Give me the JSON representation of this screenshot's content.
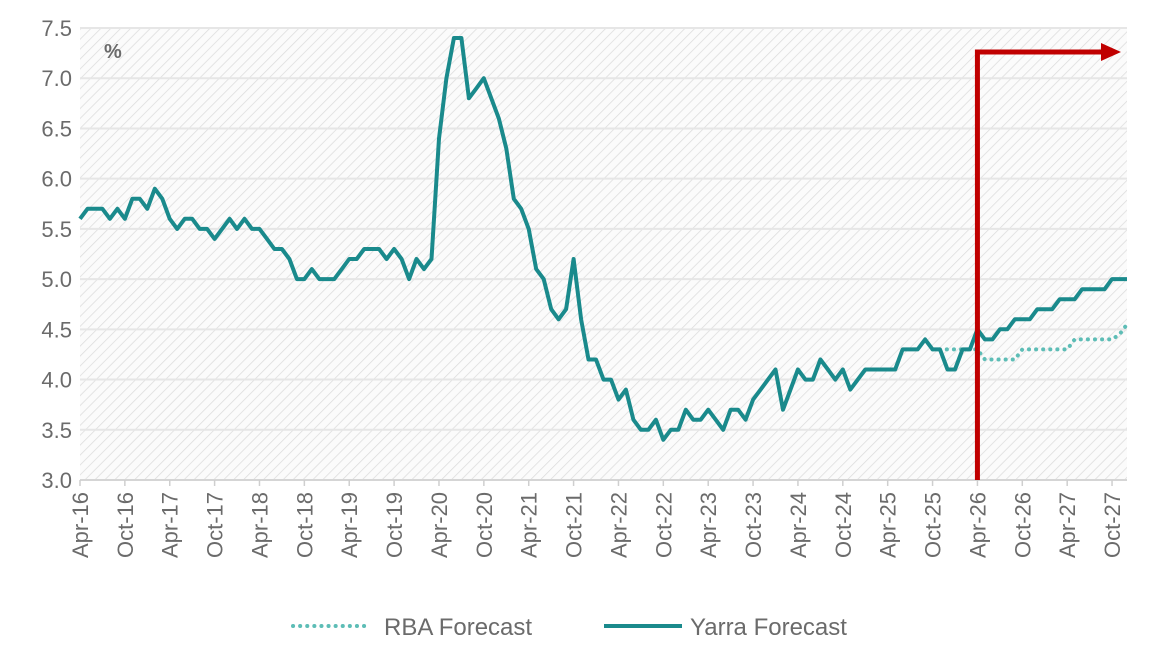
{
  "chart_data": {
    "type": "line",
    "unit_label": "%",
    "ylim": [
      3.0,
      7.5
    ],
    "y_ticks": [
      "3.0",
      "3.5",
      "4.0",
      "4.5",
      "5.0",
      "5.5",
      "6.0",
      "6.5",
      "7.0",
      "7.5"
    ],
    "x_range": [
      "2016-04",
      "2027-12"
    ],
    "x_tick_labels": [
      "Apr-16",
      "Oct-16",
      "Apr-17",
      "Oct-17",
      "Apr-18",
      "Oct-18",
      "Apr-19",
      "Oct-19",
      "Apr-20",
      "Oct-20",
      "Apr-21",
      "Oct-21",
      "Apr-22",
      "Oct-22",
      "Apr-23",
      "Oct-23",
      "Apr-24",
      "Oct-24",
      "Apr-25",
      "Oct-25",
      "Apr-26",
      "Oct-26",
      "Apr-27",
      "Oct-27"
    ],
    "grid": true,
    "legend_position": "bottom",
    "colors": {
      "series": "#1a8a8c",
      "rba": "#5dbdb6",
      "marker": "#c00000",
      "grid": "#e6e6e6",
      "text": "#6b6b6b"
    },
    "series": [
      {
        "name": "Yarra Forecast",
        "style": "solid",
        "points": [
          [
            "2016-04",
            5.6
          ],
          [
            "2016-05",
            5.7
          ],
          [
            "2016-06",
            5.7
          ],
          [
            "2016-07",
            5.7
          ],
          [
            "2016-08",
            5.6
          ],
          [
            "2016-09",
            5.7
          ],
          [
            "2016-10",
            5.6
          ],
          [
            "2016-11",
            5.8
          ],
          [
            "2016-12",
            5.8
          ],
          [
            "2017-01",
            5.7
          ],
          [
            "2017-02",
            5.9
          ],
          [
            "2017-03",
            5.8
          ],
          [
            "2017-04",
            5.6
          ],
          [
            "2017-05",
            5.5
          ],
          [
            "2017-06",
            5.6
          ],
          [
            "2017-07",
            5.6
          ],
          [
            "2017-08",
            5.5
          ],
          [
            "2017-09",
            5.5
          ],
          [
            "2017-10",
            5.4
          ],
          [
            "2017-11",
            5.5
          ],
          [
            "2017-12",
            5.6
          ],
          [
            "2018-01",
            5.5
          ],
          [
            "2018-02",
            5.6
          ],
          [
            "2018-03",
            5.5
          ],
          [
            "2018-04",
            5.5
          ],
          [
            "2018-05",
            5.4
          ],
          [
            "2018-06",
            5.3
          ],
          [
            "2018-07",
            5.3
          ],
          [
            "2018-08",
            5.2
          ],
          [
            "2018-09",
            5.0
          ],
          [
            "2018-10",
            5.0
          ],
          [
            "2018-11",
            5.1
          ],
          [
            "2018-12",
            5.0
          ],
          [
            "2019-01",
            5.0
          ],
          [
            "2019-02",
            5.0
          ],
          [
            "2019-03",
            5.1
          ],
          [
            "2019-04",
            5.2
          ],
          [
            "2019-05",
            5.2
          ],
          [
            "2019-06",
            5.3
          ],
          [
            "2019-07",
            5.3
          ],
          [
            "2019-08",
            5.3
          ],
          [
            "2019-09",
            5.2
          ],
          [
            "2019-10",
            5.3
          ],
          [
            "2019-11",
            5.2
          ],
          [
            "2019-12",
            5.0
          ],
          [
            "2020-01",
            5.2
          ],
          [
            "2020-02",
            5.1
          ],
          [
            "2020-03",
            5.2
          ],
          [
            "2020-04",
            6.4
          ],
          [
            "2020-05",
            7.0
          ],
          [
            "2020-06",
            7.4
          ],
          [
            "2020-07",
            7.4
          ],
          [
            "2020-08",
            6.8
          ],
          [
            "2020-09",
            6.9
          ],
          [
            "2020-10",
            7.0
          ],
          [
            "2020-11",
            6.8
          ],
          [
            "2020-12",
            6.6
          ],
          [
            "2021-01",
            6.3
          ],
          [
            "2021-02",
            5.8
          ],
          [
            "2021-03",
            5.7
          ],
          [
            "2021-04",
            5.5
          ],
          [
            "2021-05",
            5.1
          ],
          [
            "2021-06",
            5.0
          ],
          [
            "2021-07",
            4.7
          ],
          [
            "2021-08",
            4.6
          ],
          [
            "2021-09",
            4.7
          ],
          [
            "2021-10",
            5.2
          ],
          [
            "2021-11",
            4.6
          ],
          [
            "2021-12",
            4.2
          ],
          [
            "2022-01",
            4.2
          ],
          [
            "2022-02",
            4.0
          ],
          [
            "2022-03",
            4.0
          ],
          [
            "2022-04",
            3.8
          ],
          [
            "2022-05",
            3.9
          ],
          [
            "2022-06",
            3.6
          ],
          [
            "2022-07",
            3.5
          ],
          [
            "2022-08",
            3.5
          ],
          [
            "2022-09",
            3.6
          ],
          [
            "2022-10",
            3.4
          ],
          [
            "2022-11",
            3.5
          ],
          [
            "2022-12",
            3.5
          ],
          [
            "2023-01",
            3.7
          ],
          [
            "2023-02",
            3.6
          ],
          [
            "2023-03",
            3.6
          ],
          [
            "2023-04",
            3.7
          ],
          [
            "2023-05",
            3.6
          ],
          [
            "2023-06",
            3.5
          ],
          [
            "2023-07",
            3.7
          ],
          [
            "2023-08",
            3.7
          ],
          [
            "2023-09",
            3.6
          ],
          [
            "2023-10",
            3.8
          ],
          [
            "2023-11",
            3.9
          ],
          [
            "2023-12",
            4.0
          ],
          [
            "2024-01",
            4.1
          ],
          [
            "2024-02",
            3.7
          ],
          [
            "2024-03",
            3.9
          ],
          [
            "2024-04",
            4.1
          ],
          [
            "2024-05",
            4.0
          ],
          [
            "2024-06",
            4.0
          ],
          [
            "2024-07",
            4.2
          ],
          [
            "2024-08",
            4.1
          ],
          [
            "2024-09",
            4.0
          ],
          [
            "2024-10",
            4.1
          ],
          [
            "2024-11",
            3.9
          ],
          [
            "2024-12",
            4.0
          ],
          [
            "2025-01",
            4.1
          ],
          [
            "2025-02",
            4.1
          ],
          [
            "2025-03",
            4.1
          ],
          [
            "2025-04",
            4.1
          ],
          [
            "2025-05",
            4.1
          ],
          [
            "2025-06",
            4.3
          ],
          [
            "2025-07",
            4.3
          ],
          [
            "2025-08",
            4.3
          ],
          [
            "2025-09",
            4.4
          ],
          [
            "2025-10",
            4.3
          ],
          [
            "2025-11",
            4.3
          ],
          [
            "2025-12",
            4.1
          ],
          [
            "2026-01",
            4.1
          ],
          [
            "2026-02",
            4.3
          ],
          [
            "2026-03",
            4.3
          ],
          [
            "2026-04",
            4.5
          ],
          [
            "2026-05",
            4.4
          ],
          [
            "2026-06",
            4.4
          ],
          [
            "2026-07",
            4.5
          ],
          [
            "2026-08",
            4.5
          ],
          [
            "2026-09",
            4.6
          ],
          [
            "2026-10",
            4.6
          ],
          [
            "2026-11",
            4.6
          ],
          [
            "2026-12",
            4.7
          ],
          [
            "2027-01",
            4.7
          ],
          [
            "2027-02",
            4.7
          ],
          [
            "2027-03",
            4.8
          ],
          [
            "2027-04",
            4.8
          ],
          [
            "2027-05",
            4.8
          ],
          [
            "2027-06",
            4.9
          ],
          [
            "2027-07",
            4.9
          ],
          [
            "2027-08",
            4.9
          ],
          [
            "2027-09",
            4.9
          ],
          [
            "2027-10",
            5.0
          ],
          [
            "2027-11",
            5.0
          ],
          [
            "2027-12",
            5.0
          ]
        ]
      },
      {
        "name": "RBA Forecast",
        "style": "dotted",
        "points": [
          [
            "2025-10",
            4.3
          ],
          [
            "2025-11",
            4.3
          ],
          [
            "2025-12",
            4.3
          ],
          [
            "2026-01",
            4.3
          ],
          [
            "2026-02",
            4.3
          ],
          [
            "2026-03",
            4.3
          ],
          [
            "2026-04",
            4.3
          ],
          [
            "2026-05",
            4.2
          ],
          [
            "2026-06",
            4.2
          ],
          [
            "2026-07",
            4.2
          ],
          [
            "2026-08",
            4.2
          ],
          [
            "2026-09",
            4.2
          ],
          [
            "2026-10",
            4.3
          ],
          [
            "2026-11",
            4.3
          ],
          [
            "2026-12",
            4.3
          ],
          [
            "2027-01",
            4.3
          ],
          [
            "2027-02",
            4.3
          ],
          [
            "2027-03",
            4.3
          ],
          [
            "2027-04",
            4.3
          ],
          [
            "2027-05",
            4.4
          ],
          [
            "2027-06",
            4.4
          ],
          [
            "2027-07",
            4.4
          ],
          [
            "2027-08",
            4.4
          ],
          [
            "2027-09",
            4.4
          ],
          [
            "2027-10",
            4.4
          ],
          [
            "2027-11",
            4.45
          ],
          [
            "2027-12",
            4.55
          ]
        ]
      }
    ],
    "forecast_marker": {
      "start": "2026-04",
      "direction": "forward"
    },
    "legend": [
      {
        "label": "RBA Forecast",
        "style": "dotted"
      },
      {
        "label": "Yarra Forecast",
        "style": "solid"
      }
    ]
  }
}
